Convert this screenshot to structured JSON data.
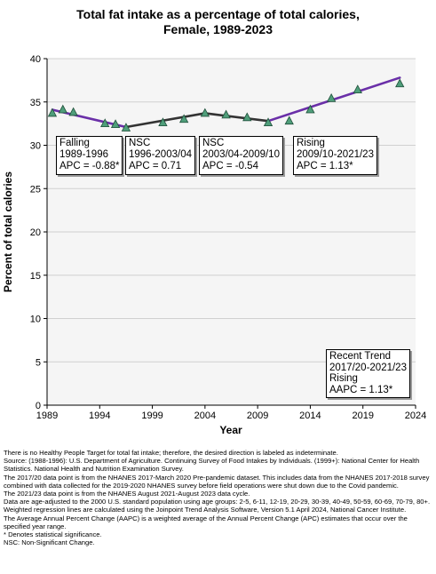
{
  "chart_data": {
    "type": "line",
    "title_lines": [
      "Total fat intake as a percentage of total calories,",
      "Female,  1989-2023"
    ],
    "xlabel": "Year",
    "ylabel": "Percent of total calories",
    "xlim": [
      1989,
      2024
    ],
    "ylim": [
      0,
      40
    ],
    "xticks": [
      1989,
      1994,
      1999,
      2004,
      2009,
      2014,
      2019,
      2024
    ],
    "yticks": [
      0,
      5,
      10,
      15,
      20,
      25,
      30,
      35,
      40
    ],
    "grid": "horizontal",
    "observed": {
      "x": [
        1989.5,
        1990.5,
        1991.5,
        1994.5,
        1995.5,
        1996.5,
        2000,
        2002,
        2004,
        2006,
        2008,
        2010,
        2012,
        2014,
        2016,
        2018.5,
        2022.5
      ],
      "y": [
        33.7,
        34.1,
        33.8,
        32.5,
        32.4,
        32.0,
        32.6,
        33.0,
        33.7,
        33.5,
        33.2,
        32.6,
        32.8,
        34.1,
        35.4,
        36.4,
        37.1
      ]
    },
    "trend_segments": [
      {
        "x": [
          1989.5,
          1996.5
        ],
        "y": [
          34.1,
          32.1
        ],
        "color": "#6a2fa8"
      },
      {
        "x": [
          1996.5,
          2004
        ],
        "y": [
          32.1,
          33.7
        ],
        "color": "#333333"
      },
      {
        "x": [
          2004,
          2010
        ],
        "y": [
          33.7,
          32.8
        ],
        "color": "#333333"
      },
      {
        "x": [
          2010,
          2022.5
        ],
        "y": [
          32.8,
          37.8
        ],
        "color": "#6a2fa8"
      }
    ],
    "marker_color": "#4f9e7a",
    "segment_labels": [
      {
        "lines": [
          "Falling",
          "1989-1996",
          "APC = -0.88*"
        ]
      },
      {
        "lines": [
          "NSC",
          "1996-2003/04",
          "APC =  0.71"
        ]
      },
      {
        "lines": [
          "NSC",
          "2003/04-2009/10",
          "APC = -0.54"
        ]
      },
      {
        "lines": [
          "Rising",
          "2009/10-2021/23",
          "APC =  1.13*"
        ]
      }
    ],
    "recent_trend": {
      "lines": [
        "Recent Trend",
        "2017/20-2021/23",
        "Rising",
        "AAPC =  1.13*"
      ]
    }
  },
  "footnotes": [
    "There is no Healthy People Target for total fat intake; therefore, the desired direction is labeled as indeterminate.",
    "Source: (1988-1996): U.S. Department of Agriculture. Continuing Survey of Food Intakes by Individuals. (1999+): National Center for Health Statistics. National Health and Nutrition Examination Survey.",
    "The 2017/20 data point is from the NHANES 2017-March 2020 Pre-pandemic dataset. This includes data from the NHANES 2017-2018 survey combined with data collected for the 2019-2020 NHANES survey before field operations were shut down due to the Covid pandemic.",
    "The 2021/23 data point is from the NHANES August 2021-August 2023 data cycle.",
    "Data are age-adjusted to the 2000 U.S. standard population using age groups: 2-5, 6-11, 12-19, 20-29, 30-39, 40-49, 50-59, 60-69, 70-79, 80+.",
    "Weighted regression lines are calculated using the Joinpoint Trend Analysis Software, Version 5.1 April 2024, National Cancer Institute.",
    "The Average Annual Percent Change (AAPC) is a weighted average of the Annual Percent Change (APC) estimates that occur over the specified year range.",
    "* Denotes statistical significance.",
    "NSC: Non-Significant Change."
  ]
}
